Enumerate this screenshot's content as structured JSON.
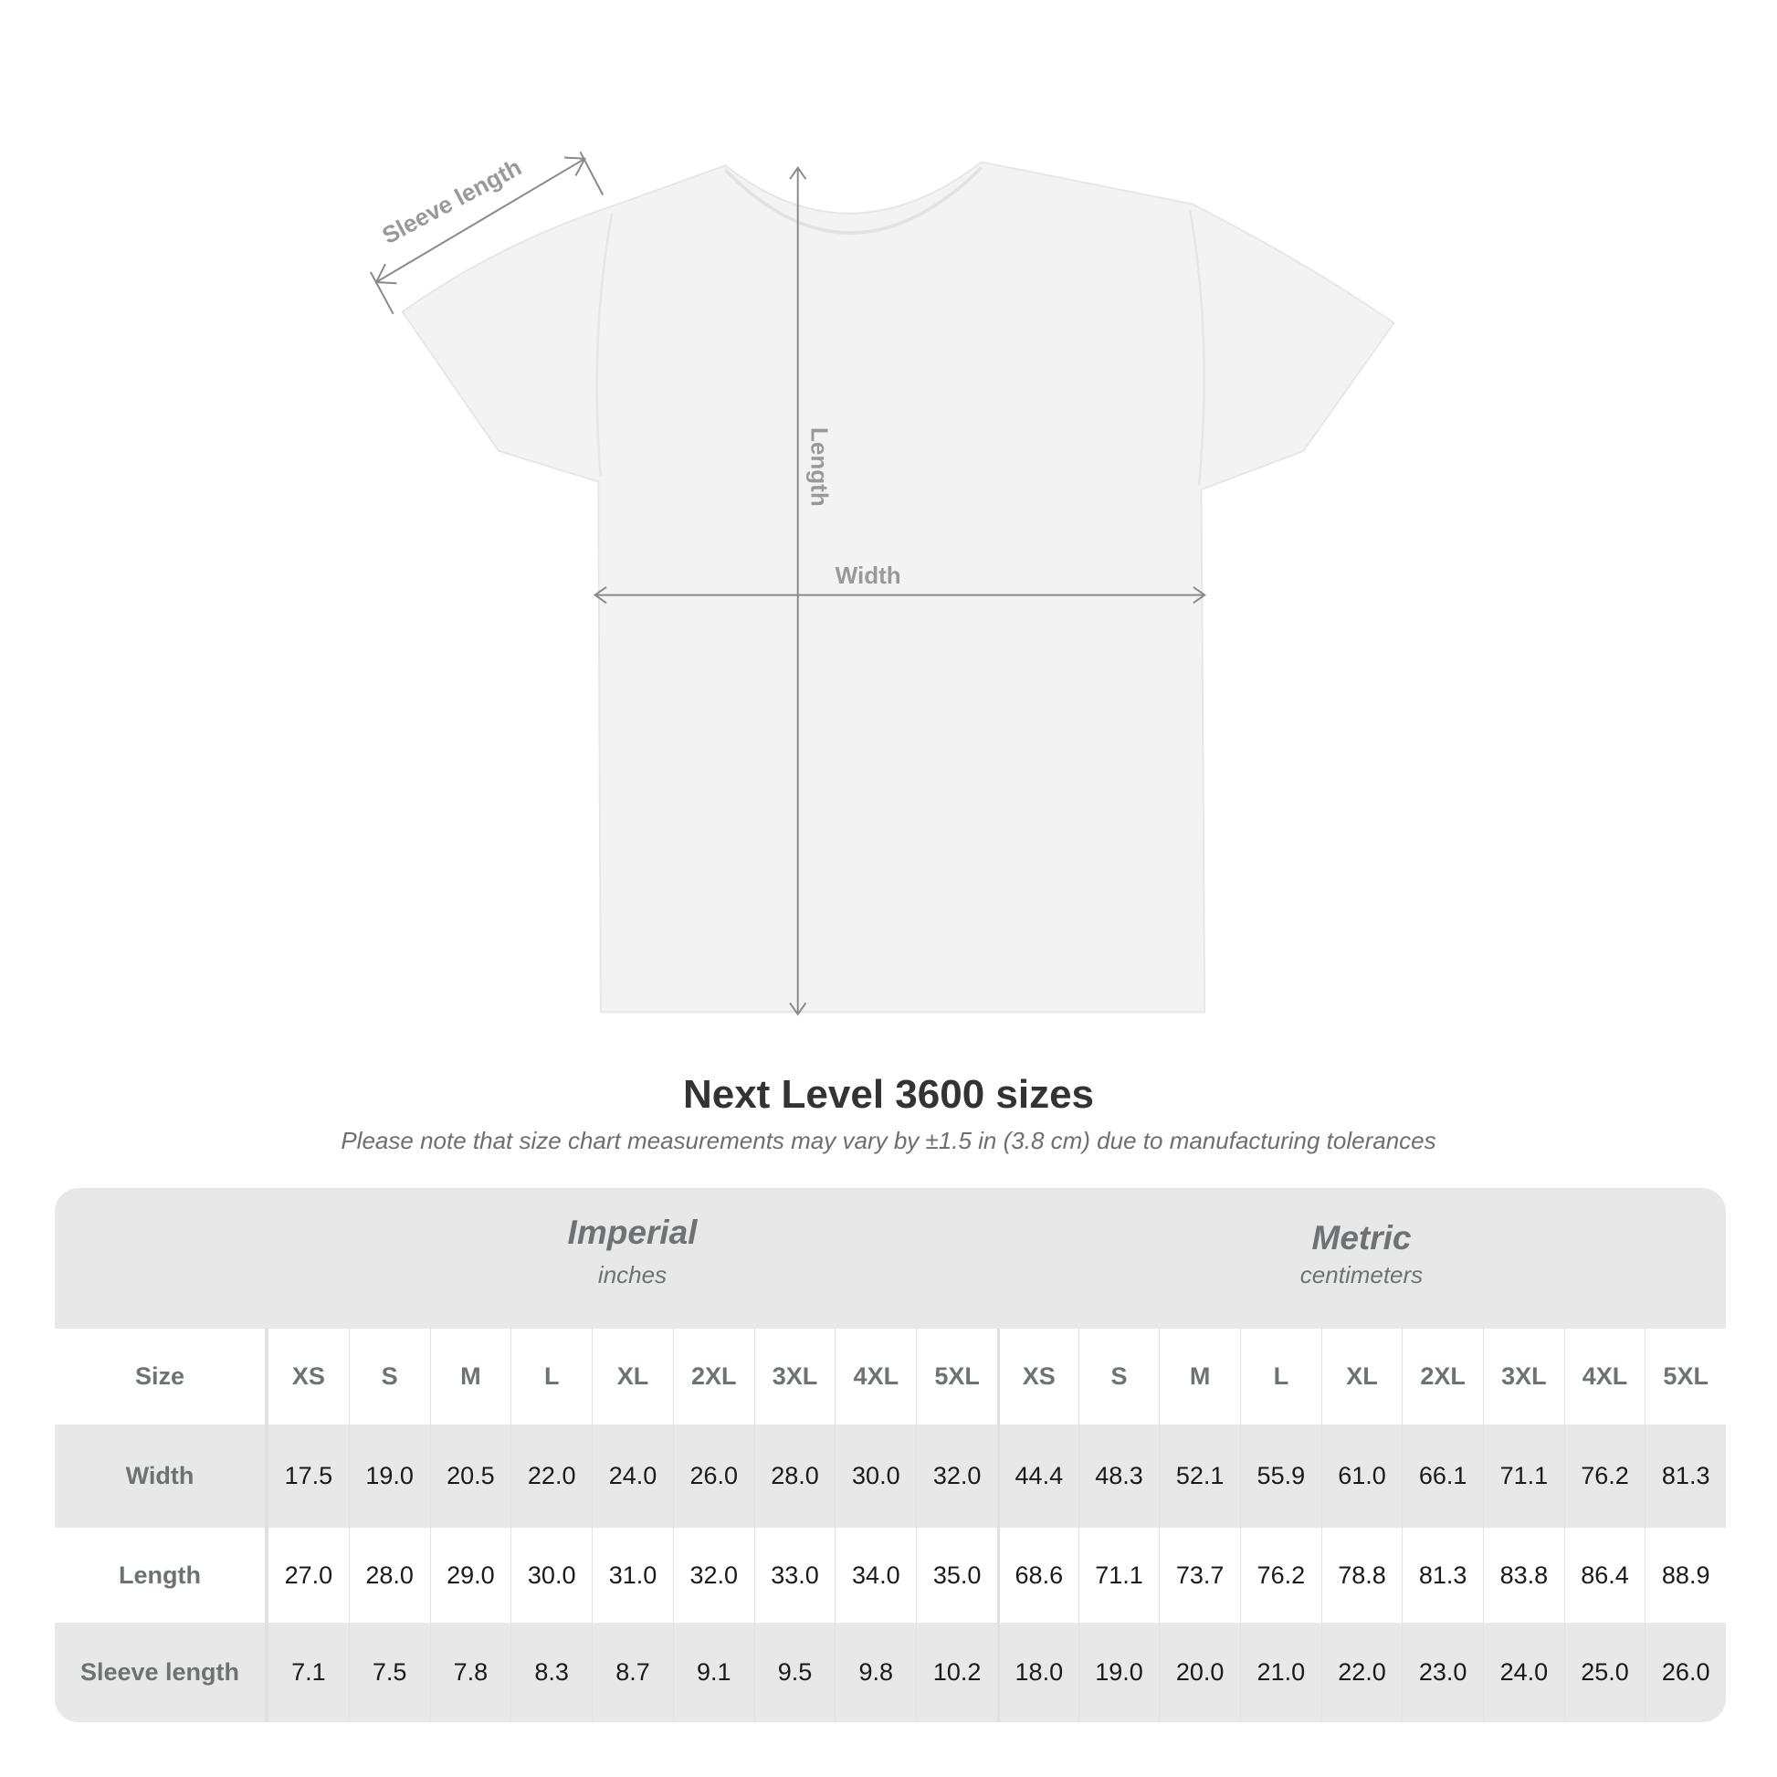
{
  "diagram": {
    "labels": {
      "sleeve": "Sleeve length",
      "length": "Length",
      "width": "Width"
    },
    "garment_color": "#f3f3f3",
    "arrow_color": "#8a8a8a"
  },
  "title": "Next Level 3600 sizes",
  "note": "Please note that size chart measurements may vary by ±1.5 in (3.8 cm) due to manufacturing tolerances",
  "table": {
    "imperial": {
      "title": "Imperial",
      "unit": "inches"
    },
    "metric": {
      "title": "Metric",
      "unit": "centimeters"
    },
    "size_label": "Size",
    "sizes": [
      "XS",
      "S",
      "M",
      "L",
      "XL",
      "2XL",
      "3XL",
      "4XL",
      "5XL"
    ],
    "rows": [
      {
        "label": "Width",
        "imperial": [
          "17.5",
          "19.0",
          "20.5",
          "22.0",
          "24.0",
          "26.0",
          "28.0",
          "30.0",
          "32.0"
        ],
        "metric": [
          "44.4",
          "48.3",
          "52.1",
          "55.9",
          "61.0",
          "66.1",
          "71.1",
          "76.2",
          "81.3"
        ]
      },
      {
        "label": "Length",
        "imperial": [
          "27.0",
          "28.0",
          "29.0",
          "30.0",
          "31.0",
          "32.0",
          "33.0",
          "34.0",
          "35.0"
        ],
        "metric": [
          "68.6",
          "71.1",
          "73.7",
          "76.2",
          "78.8",
          "81.3",
          "83.8",
          "86.4",
          "88.9"
        ]
      },
      {
        "label": "Sleeve length",
        "imperial": [
          "7.1",
          "7.5",
          "7.8",
          "8.3",
          "8.7",
          "9.1",
          "9.5",
          "9.8",
          "10.2"
        ],
        "metric": [
          "18.0",
          "19.0",
          "20.0",
          "21.0",
          "22.0",
          "23.0",
          "24.0",
          "25.0",
          "26.0"
        ]
      }
    ]
  }
}
